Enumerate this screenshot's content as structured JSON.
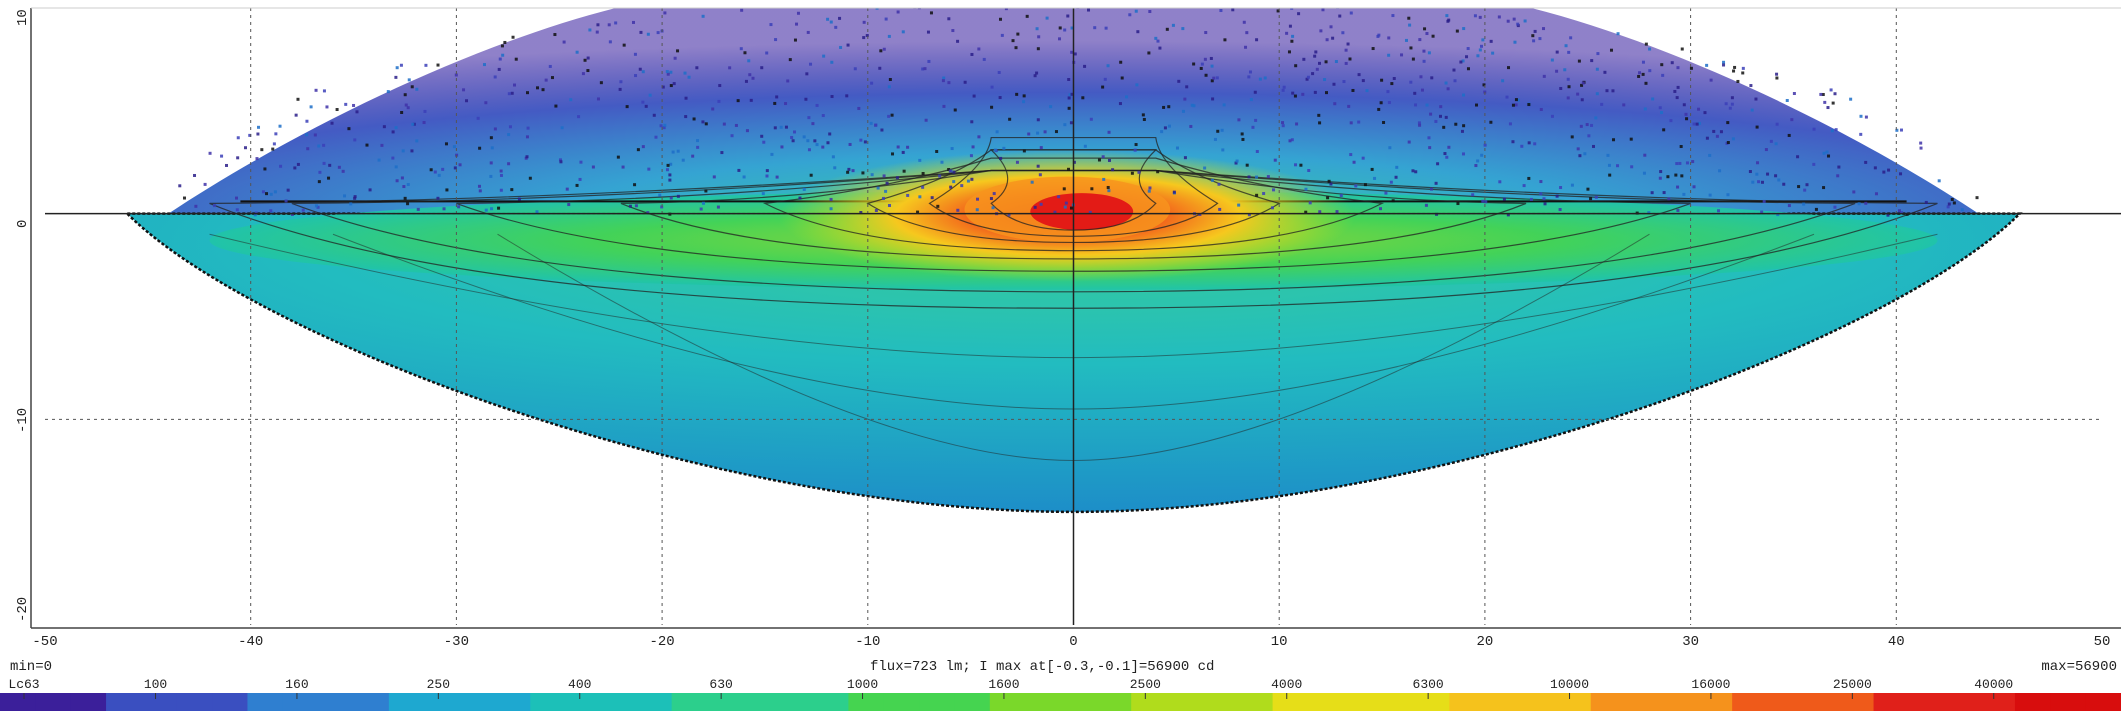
{
  "chart_data": {
    "type": "heatmap",
    "title": "",
    "xlim": [
      -50,
      50
    ],
    "ylim": [
      -20,
      10
    ],
    "x_ticks": [
      "-50",
      "-40",
      "-30",
      "-20",
      "-10",
      "0",
      "10",
      "20",
      "30",
      "40",
      "50"
    ],
    "y_ticks": [
      "10",
      "0",
      "-10",
      "-20"
    ],
    "grid": true,
    "min_text": "min=0",
    "max_text": "max=56900",
    "flux_text": "flux=723 lm; I max at[-0.3,-0.1]=56900 cd",
    "colorbar": {
      "levels": [
        "Lc63",
        "100",
        "160",
        "250",
        "400",
        "630",
        "1000",
        "1600",
        "2500",
        "4000",
        "6300",
        "10000",
        "16000",
        "25000",
        "40000"
      ],
      "colors": [
        "#3b1f9a",
        "#3a4fc0",
        "#2f7fd0",
        "#1ea8d0",
        "#1cc0b8",
        "#2ccf8c",
        "#45d450",
        "#7ad82a",
        "#b0dc1c",
        "#e6de18",
        "#f5c21c",
        "#f5921c",
        "#ef5a1a",
        "#e0201a",
        "#d80d0d"
      ]
    },
    "peak": {
      "x": -0.3,
      "y": -0.1,
      "value": 56900
    }
  }
}
